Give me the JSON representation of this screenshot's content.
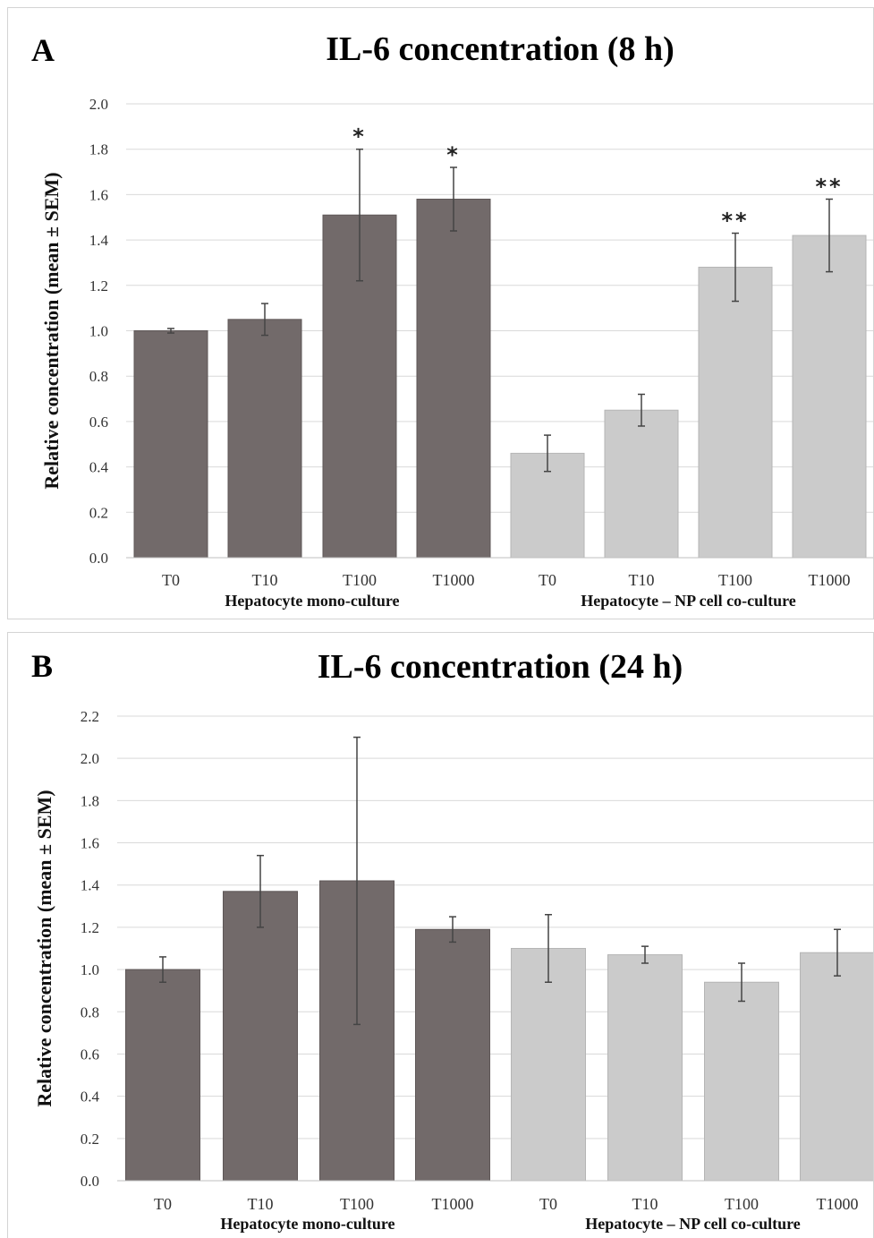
{
  "colors": {
    "mono": "#726a6a",
    "co": "#cbcbcb",
    "grid": "#d9d9d9",
    "error": "#444444"
  },
  "chart_data": [
    {
      "type": "bar",
      "panel": "A",
      "title": "IL-6 concentration (8 h)",
      "ylabel": "Relative concentration (mean ± SEM)",
      "xlabel": "",
      "ylim": [
        0,
        2.0
      ],
      "yticks": [
        0,
        0.2,
        0.4,
        0.6,
        0.8,
        1.0,
        1.2,
        1.4,
        1.6,
        1.8,
        2.0
      ],
      "grid": true,
      "groups": [
        "Hepatocyte mono-culture",
        "Hepatocyte – NP cell co-culture"
      ],
      "categories": [
        "T0",
        "T10",
        "T100",
        "T1000",
        "T0",
        "T10",
        "T100",
        "T1000"
      ],
      "bar_group": [
        0,
        0,
        0,
        0,
        1,
        1,
        1,
        1
      ],
      "values": [
        1.0,
        1.05,
        1.51,
        1.58,
        0.46,
        0.65,
        1.28,
        1.42
      ],
      "errors": [
        0.01,
        0.07,
        0.29,
        0.14,
        0.08,
        0.07,
        0.15,
        0.16
      ],
      "annotations": [
        "",
        "",
        "*",
        "*",
        "",
        "",
        "**",
        "**"
      ]
    },
    {
      "type": "bar",
      "panel": "B",
      "title": "IL-6 concentration (24 h)",
      "ylabel": "Relative concentration (mean ± SEM)",
      "xlabel": "",
      "ylim": [
        0,
        2.2
      ],
      "yticks": [
        0,
        0.2,
        0.4,
        0.6,
        0.8,
        1.0,
        1.2,
        1.4,
        1.6,
        1.8,
        2.0,
        2.2
      ],
      "grid": true,
      "groups": [
        "Hepatocyte mono-culture",
        "Hepatocyte – NP cell co-culture"
      ],
      "categories": [
        "T0",
        "T10",
        "T100",
        "T1000",
        "T0",
        "T10",
        "T100",
        "T1000"
      ],
      "bar_group": [
        0,
        0,
        0,
        0,
        1,
        1,
        1,
        1
      ],
      "values": [
        1.0,
        1.37,
        1.42,
        1.19,
        1.1,
        1.07,
        0.94,
        1.08
      ],
      "errors": [
        0.06,
        0.17,
        0.68,
        0.06,
        0.16,
        0.04,
        0.09,
        0.11
      ],
      "annotations": [
        "",
        "",
        "",
        "",
        "",
        "",
        "",
        ""
      ]
    }
  ]
}
